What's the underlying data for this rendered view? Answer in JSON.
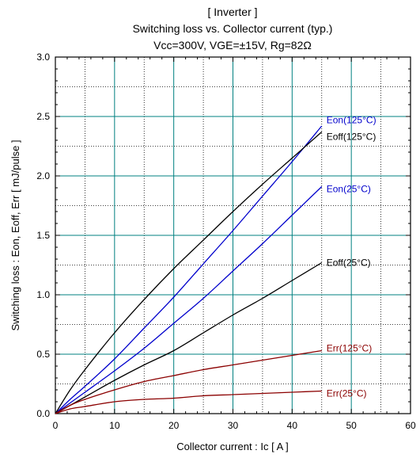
{
  "chart_data": {
    "type": "line",
    "title_lines": [
      "[ Inverter ]",
      "Switching loss  vs.  Collector current  (typ.)",
      "Vcc=300V, VGE=±15V, Rg=82Ω"
    ],
    "xlabel": "Collector current  :  Ic  [ A ]",
    "ylabel": "Switching loss  :  Eon, Eoff, Err  [ mJ/pulse ]",
    "xlim": [
      0,
      60
    ],
    "ylim": [
      0,
      3.0
    ],
    "x_major_ticks": [
      0,
      10,
      20,
      30,
      40,
      50,
      60
    ],
    "x_tick_labels": [
      "0",
      "10",
      "20",
      "30",
      "40",
      "50",
      "60"
    ],
    "y_major_ticks": [
      0,
      0.5,
      1.0,
      1.5,
      2.0,
      2.5,
      3.0
    ],
    "y_tick_labels": [
      "0.0",
      "0.5",
      "1.0",
      "1.5",
      "2.0",
      "2.5",
      "3.0"
    ],
    "grid": true,
    "colors": {
      "black": "#000000",
      "blue": "#0000cc",
      "red": "#8b0000",
      "grid_major": "#008080",
      "grid_minor": "#000000"
    },
    "series": [
      {
        "name": "Eon(125°C)",
        "color": "#0000cc",
        "x": [
          0,
          2.5,
          5,
          10,
          15,
          20,
          25,
          30,
          35,
          40,
          45
        ],
        "y": [
          0,
          0.12,
          0.23,
          0.46,
          0.72,
          0.98,
          1.26,
          1.54,
          1.83,
          2.12,
          2.42
        ]
      },
      {
        "name": "Eoff(125°C)",
        "color": "#000000",
        "x": [
          0,
          2.5,
          5,
          10,
          15,
          20,
          25,
          30,
          35,
          40,
          45
        ],
        "y": [
          0,
          0.2,
          0.37,
          0.68,
          0.96,
          1.22,
          1.46,
          1.7,
          1.93,
          2.15,
          2.37
        ]
      },
      {
        "name": "Eon(25°C)",
        "color": "#0000cc",
        "x": [
          0,
          2.5,
          5,
          10,
          15,
          20,
          25,
          30,
          35,
          40,
          45
        ],
        "y": [
          0,
          0.09,
          0.18,
          0.36,
          0.55,
          0.76,
          0.97,
          1.2,
          1.43,
          1.67,
          1.91
        ]
      },
      {
        "name": "Eoff(25°C)",
        "color": "#000000",
        "x": [
          0,
          2.5,
          5,
          10,
          15,
          20,
          25,
          30,
          35,
          40,
          45
        ],
        "y": [
          0,
          0.07,
          0.14,
          0.28,
          0.41,
          0.53,
          0.68,
          0.83,
          0.97,
          1.12,
          1.27
        ]
      },
      {
        "name": "Err(125°C)",
        "color": "#8b0000",
        "x": [
          0,
          2.5,
          5,
          10,
          15,
          20,
          25,
          30,
          35,
          40,
          45
        ],
        "y": [
          0,
          0.07,
          0.12,
          0.2,
          0.27,
          0.32,
          0.37,
          0.41,
          0.45,
          0.49,
          0.53
        ]
      },
      {
        "name": "Err(25°C)",
        "color": "#8b0000",
        "x": [
          0,
          2.5,
          5,
          10,
          15,
          20,
          25,
          30,
          35,
          40,
          45
        ],
        "y": [
          0,
          0.04,
          0.06,
          0.1,
          0.12,
          0.13,
          0.15,
          0.16,
          0.17,
          0.18,
          0.19
        ]
      }
    ],
    "series_labels": [
      {
        "text": "Eon(125°C)",
        "color": "#0000cc",
        "x": 45.8,
        "y": 2.47
      },
      {
        "text": "Eoff(125°C)",
        "color": "#000000",
        "x": 45.8,
        "y": 2.33
      },
      {
        "text": "Eon(25°C)",
        "color": "#0000cc",
        "x": 45.8,
        "y": 1.89
      },
      {
        "text": "Eoff(25°C)",
        "color": "#000000",
        "x": 45.8,
        "y": 1.27
      },
      {
        "text": "Err(125°C)",
        "color": "#8b0000",
        "x": 45.8,
        "y": 0.55
      },
      {
        "text": "Err(25°C)",
        "color": "#8b0000",
        "x": 45.8,
        "y": 0.17
      }
    ]
  }
}
